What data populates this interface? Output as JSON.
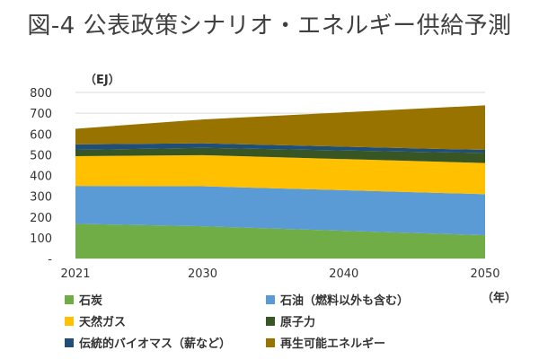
{
  "title": "図-4 公表政策シナリオ・エネルギー供給予測",
  "unit_label": "（EJ）",
  "year_label": "（年）",
  "chart_data": {
    "type": "area",
    "stacked": true,
    "title": "図-4 公表政策シナリオ・エネルギー供給予測",
    "ylabel": "（EJ）",
    "xlabel": "（年）",
    "x": [
      2021,
      2030,
      2050
    ],
    "x_ticks": [
      "2021",
      "2030",
      "2040",
      "2050"
    ],
    "x_tick_values": [
      2021,
      2030,
      2040,
      2050
    ],
    "y_ticks": [
      "-",
      "100",
      "200",
      "300",
      "400",
      "500",
      "600",
      "700",
      "800"
    ],
    "ylim": [
      0,
      800
    ],
    "grid": true,
    "series": [
      {
        "name": "石炭",
        "values": [
          167,
          155,
          112
        ],
        "color": "#70AD47"
      },
      {
        "name": "石油（燃料以外も含む）",
        "values": [
          183,
          193,
          198
        ],
        "color": "#5B9BD5"
      },
      {
        "name": "天然ガス",
        "values": [
          143,
          150,
          150
        ],
        "color": "#FFC000"
      },
      {
        "name": "原子力",
        "values": [
          30,
          35,
          48
        ],
        "color": "#375623"
      },
      {
        "name": "伝統的バイオマス（薪など）",
        "values": [
          27,
          22,
          15
        ],
        "color": "#1F4E79"
      },
      {
        "name": "再生可能エネルギー",
        "values": [
          75,
          115,
          215
        ],
        "color": "#997300"
      }
    ]
  }
}
